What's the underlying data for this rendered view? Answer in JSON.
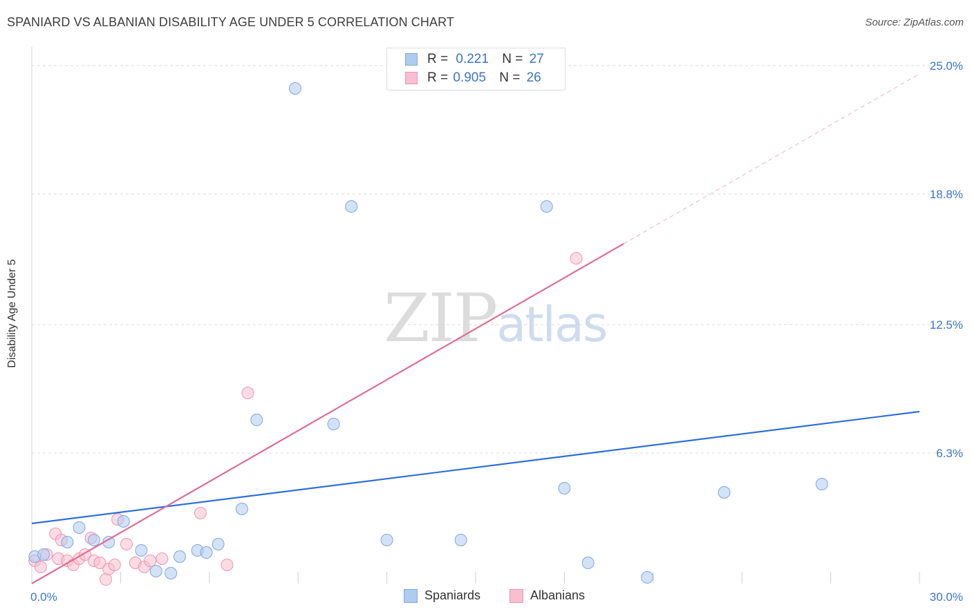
{
  "title": "SPANIARD VS ALBANIAN DISABILITY AGE UNDER 5 CORRELATION CHART",
  "source": "Source: ZipAtlas.com",
  "watermark": {
    "zip": "ZIP",
    "atlas": "atlas"
  },
  "colors": {
    "spaniards_fill": "#aecbf0",
    "spaniards_stroke": "#7ea7e0",
    "spaniards_line": "#2e6fd6",
    "albanians_fill": "#f7bfd0",
    "albanians_stroke": "#ee93b0",
    "albanians_line": "#e06b94",
    "grid": "#d9d9d9",
    "tick_label": "#3b74c9"
  },
  "legend": {
    "spaniards": {
      "r_label": "R =",
      "r_value": "0.221",
      "n_label": "N =",
      "n_value": "27"
    },
    "albanians": {
      "r_label": "R =",
      "r_value": "0.905",
      "n_label": "N =",
      "n_value": "26"
    }
  },
  "chart_data": {
    "type": "scatter",
    "title": "SPANIARD VS ALBANIAN DISABILITY AGE UNDER 5 CORRELATION CHART",
    "xlabel": "",
    "ylabel": "Disability Age Under 5",
    "xlim": [
      0,
      30
    ],
    "ylim": [
      0,
      25.5
    ],
    "x_tick_labels": [
      "0.0%",
      "30.0%"
    ],
    "y_ticks": [
      6.3,
      12.5,
      18.8,
      25.0
    ],
    "y_tick_labels": [
      "6.3%",
      "12.5%",
      "18.8%",
      "25.0%"
    ],
    "legend_position": "top-center",
    "series": [
      {
        "name": "Spaniards",
        "r": 0.221,
        "n": 27,
        "points": [
          [
            0.1,
            1.3
          ],
          [
            0.4,
            1.4
          ],
          [
            1.2,
            2.0
          ],
          [
            1.6,
            2.7
          ],
          [
            2.1,
            2.1
          ],
          [
            2.6,
            2.0
          ],
          [
            3.1,
            3.0
          ],
          [
            3.7,
            1.6
          ],
          [
            4.2,
            0.6
          ],
          [
            4.7,
            0.5
          ],
          [
            5.0,
            1.3
          ],
          [
            5.6,
            1.6
          ],
          [
            5.9,
            1.5
          ],
          [
            6.3,
            1.9
          ],
          [
            7.1,
            3.6
          ],
          [
            7.6,
            7.9
          ],
          [
            8.9,
            23.9
          ],
          [
            10.2,
            7.7
          ],
          [
            10.8,
            18.2
          ],
          [
            12.0,
            2.1
          ],
          [
            14.5,
            2.1
          ],
          [
            17.4,
            18.2
          ],
          [
            18.0,
            4.6
          ],
          [
            18.8,
            1.0
          ],
          [
            20.8,
            0.3
          ],
          [
            23.4,
            4.4
          ],
          [
            26.7,
            4.8
          ]
        ],
        "trend": {
          "x": [
            0,
            30
          ],
          "y": [
            2.9,
            8.3
          ]
        }
      },
      {
        "name": "Albanians",
        "r": 0.905,
        "n": 26,
        "points": [
          [
            0.1,
            1.1
          ],
          [
            0.3,
            0.8
          ],
          [
            0.5,
            1.4
          ],
          [
            0.8,
            2.4
          ],
          [
            0.9,
            1.2
          ],
          [
            1.0,
            2.1
          ],
          [
            1.2,
            1.1
          ],
          [
            1.4,
            0.9
          ],
          [
            1.6,
            1.2
          ],
          [
            1.8,
            1.4
          ],
          [
            2.0,
            2.2
          ],
          [
            2.1,
            1.1
          ],
          [
            2.3,
            1.0
          ],
          [
            2.5,
            0.2
          ],
          [
            2.6,
            0.7
          ],
          [
            2.8,
            0.9
          ],
          [
            2.9,
            3.1
          ],
          [
            3.2,
            1.9
          ],
          [
            3.5,
            1.0
          ],
          [
            3.8,
            0.8
          ],
          [
            4.0,
            1.1
          ],
          [
            4.4,
            1.2
          ],
          [
            5.7,
            3.4
          ],
          [
            7.3,
            9.2
          ],
          [
            18.4,
            15.7
          ],
          [
            6.6,
            0.9
          ]
        ],
        "trend": {
          "x": [
            0,
            20
          ],
          "y": [
            0.0,
            16.4
          ]
        },
        "trend_dashed_extension": {
          "x": [
            20,
            30
          ],
          "y": [
            16.4,
            24.6
          ]
        }
      }
    ]
  }
}
